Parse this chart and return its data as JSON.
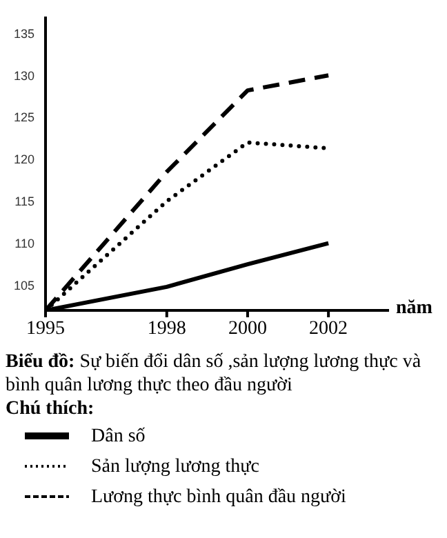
{
  "chart_data": {
    "type": "line",
    "title": "Biểu đồ: Sự biến đổi dân số ,sản lượng lương thực và bình quân lương thực theo đầu người",
    "legend_title": "Chú thích:",
    "xlabel": "năm",
    "x": [
      1995,
      1998,
      2000,
      2002
    ],
    "xlim": [
      1995,
      2003.5
    ],
    "xticks": [
      1995,
      1998,
      2000,
      2002
    ],
    "ylim": [
      102,
      137
    ],
    "yticks": [
      105,
      110,
      115,
      120,
      125,
      130,
      135
    ],
    "legend": "bottom",
    "marker": "none",
    "series": [
      {
        "name": "Dân số",
        "color": "#000000",
        "line_style": "solid",
        "values": [
          102,
          104.8,
          107.5,
          110
        ]
      },
      {
        "name": "Sản lượng lương thực",
        "color": "#000000",
        "line_style": "dotted",
        "values": [
          102,
          115,
          122,
          121.3
        ]
      },
      {
        "name": "Lương thực bình quân đầu người",
        "color": "#000000",
        "line_style": "dashed",
        "values": [
          102,
          118.5,
          128.2,
          130
        ]
      }
    ]
  }
}
